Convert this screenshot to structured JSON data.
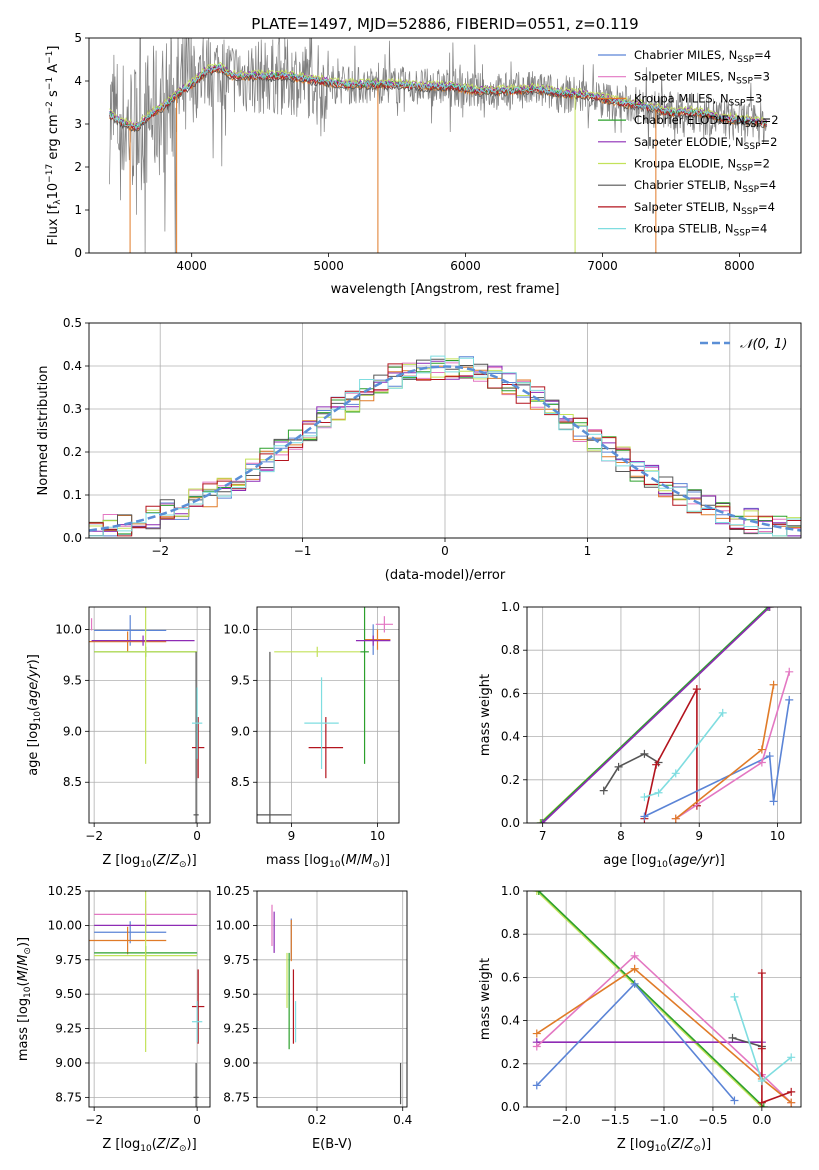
{
  "figure": {
    "title": "PLATE=1497, MJD=52886, FIBERID=0551, z=0.119"
  },
  "colors": {
    "chabrier_miles": "#5b84d6",
    "salpeter_miles": "#e377c2",
    "kroupa_miles": "#e07b28",
    "chabrier_elodie": "#2ca02c",
    "salpeter_elodie": "#8e2bb5",
    "kroupa_elodie": "#c3e25a",
    "chabrier_stelib": "#555555",
    "salpeter_stelib": "#b3141e",
    "kroupa_stelib": "#7fdde0",
    "normal_curve": "#5b8fd6"
  },
  "chart_data": [
    {
      "id": "spectrum",
      "type": "line",
      "xlabel": "wavelength [Angstrom, rest frame]",
      "ylabel_prefix": "Flux [f",
      "ylim": [
        0,
        5
      ],
      "xlim": [
        3250,
        8450
      ],
      "xticks": [
        4000,
        5000,
        6000,
        7000,
        8000
      ],
      "yticks": [
        0,
        1,
        2,
        3,
        4,
        5
      ],
      "grid": false,
      "legend_position": "upper-right",
      "legend": [
        {
          "key": "chabrier_miles",
          "name": "Chabrier MILES",
          "nssp": "4"
        },
        {
          "key": "salpeter_miles",
          "name": "Salpeter MILES",
          "nssp": "3"
        },
        {
          "key": "kroupa_miles",
          "name": "Kroupa MILES",
          "nssp": "3"
        },
        {
          "key": "chabrier_elodie",
          "name": "Chabrier ELODIE",
          "nssp": "2"
        },
        {
          "key": "salpeter_elodie",
          "name": "Salpeter ELODIE",
          "nssp": "2"
        },
        {
          "key": "kroupa_elodie",
          "name": "Kroupa ELODIE",
          "nssp": "2"
        },
        {
          "key": "chabrier_stelib",
          "name": "Chabrier STELIB",
          "nssp": "4"
        },
        {
          "key": "salpeter_stelib",
          "name": "Salpeter STELIB",
          "nssp": "4"
        },
        {
          "key": "kroupa_stelib",
          "name": "Kroupa STELIB",
          "nssp": "4"
        }
      ],
      "continuum": [
        [
          3400,
          3.2
        ],
        [
          3500,
          3.0
        ],
        [
          3600,
          2.9
        ],
        [
          3700,
          3.2
        ],
        [
          3800,
          3.4
        ],
        [
          3900,
          3.7
        ],
        [
          4000,
          3.9
        ],
        [
          4100,
          4.2
        ],
        [
          4200,
          4.3
        ],
        [
          4300,
          4.1
        ],
        [
          4500,
          4.1
        ],
        [
          4700,
          4.1
        ],
        [
          4900,
          4.0
        ],
        [
          5100,
          3.9
        ],
        [
          5300,
          3.9
        ],
        [
          5500,
          3.9
        ],
        [
          5700,
          3.85
        ],
        [
          5900,
          3.85
        ],
        [
          6100,
          3.75
        ],
        [
          6300,
          3.75
        ],
        [
          6500,
          3.8
        ],
        [
          6700,
          3.7
        ],
        [
          6900,
          3.65
        ],
        [
          7100,
          3.5
        ],
        [
          7300,
          3.4
        ],
        [
          7500,
          3.25
        ],
        [
          7700,
          3.25
        ],
        [
          7900,
          3.1
        ],
        [
          8100,
          3.05
        ],
        [
          8200,
          3.0
        ]
      ],
      "model_offsets": {
        "chabrier_miles": 0.02,
        "salpeter_miles": 0.05,
        "kroupa_miles": -0.03,
        "chabrier_elodie": 0.04,
        "salpeter_elodie": 0.07,
        "kroupa_elodie": 0.1,
        "chabrier_stelib": -0.05,
        "salpeter_stelib": 0.0,
        "kroupa_stelib": 0.03
      },
      "model_dropouts": [
        {
          "key": "kroupa_miles",
          "x": 3550
        },
        {
          "key": "kroupa_miles",
          "x": 3890
        },
        {
          "key": "kroupa_miles",
          "x": 5360
        },
        {
          "key": "kroupa_elodie",
          "x": 6800
        },
        {
          "key": "kroupa_miles",
          "x": 7390
        }
      ]
    },
    {
      "id": "residuals",
      "type": "line",
      "xlabel": "(data-model)/error",
      "ylabel": "Normed distribution",
      "xlim": [
        -2.5,
        2.5
      ],
      "ylim": [
        0,
        0.5
      ],
      "xticks": [
        -2,
        -1,
        0,
        1,
        2
      ],
      "yticks": [
        0.0,
        0.1,
        0.2,
        0.3,
        0.4,
        0.5
      ],
      "grid": true,
      "legend_position": "upper-right",
      "legend": [
        {
          "key": "normal_curve",
          "name": "𝒩(0, 1)"
        }
      ],
      "bin_width": 0.1
    },
    {
      "id": "age_vs_z",
      "type": "scatter",
      "xlabel_prefix": "Z [log",
      "ylabel_prefix": "age  [log",
      "xlim": [
        -2.1,
        0.25
      ],
      "ylim": [
        8.1,
        10.22
      ],
      "xticks": [
        -2,
        0
      ],
      "yticks": [
        8.5,
        9.0,
        9.5,
        10.0
      ],
      "grid": true,
      "points": [
        {
          "key": "chabrier_miles",
          "x": -1.3,
          "y": 9.99,
          "xerr": 0.7,
          "yerr": 0.15
        },
        {
          "key": "salpeter_miles",
          "x": -2.05,
          "y": 10.05,
          "xerr": 0.0,
          "yerr": 0.06
        },
        {
          "key": "kroupa_miles",
          "x": -1.35,
          "y": 9.88,
          "xerr": 0.75,
          "yerr": 0.1
        },
        {
          "key": "chabrier_elodie",
          "x": -1.0,
          "y": 9.78,
          "xerr": 1.0,
          "yerr": 0.05
        },
        {
          "key": "salpeter_elodie",
          "x": -1.05,
          "y": 9.89,
          "xerr": 1.0,
          "yerr": 0.05
        },
        {
          "key": "kroupa_elodie",
          "x": -1.0,
          "y": 9.78,
          "xerr": 1.0,
          "yerr": 1.1
        },
        {
          "key": "chabrier_stelib",
          "x": -0.02,
          "y": 8.18,
          "xerr": 0.05,
          "yerr": 1.6
        },
        {
          "key": "salpeter_stelib",
          "x": 0.02,
          "y": 8.84,
          "xerr": 0.12,
          "yerr": 0.3
        },
        {
          "key": "kroupa_stelib",
          "x": 0.0,
          "y": 9.08,
          "xerr": 0.1,
          "yerr": 0.35
        }
      ]
    },
    {
      "id": "age_vs_mass",
      "type": "scatter",
      "xlabel_prefix": "mass [log",
      "xlim": [
        8.6,
        10.25
      ],
      "ylim": [
        8.1,
        10.22
      ],
      "xticks": [
        9,
        10
      ],
      "yticks": [
        8.5,
        9.0,
        9.5,
        10.0
      ],
      "grid": true,
      "points": [
        {
          "key": "chabrier_miles",
          "x": 9.95,
          "y": 9.9,
          "xerr": 0.1,
          "yerr": 0.15
        },
        {
          "key": "salpeter_miles",
          "x": 10.08,
          "y": 10.05,
          "xerr": 0.1,
          "yerr": 0.08
        },
        {
          "key": "kroupa_miles",
          "x": 10.0,
          "y": 9.9,
          "xerr": 0.15,
          "yerr": 0.1
        },
        {
          "key": "chabrier_elodie",
          "x": 9.85,
          "y": 9.78,
          "xerr": 0.05,
          "yerr": 1.1
        },
        {
          "key": "salpeter_elodie",
          "x": 9.95,
          "y": 9.89,
          "xerr": 0.2,
          "yerr": 0.05
        },
        {
          "key": "kroupa_elodie",
          "x": 9.3,
          "y": 9.78,
          "xerr": 0.5,
          "yerr": 0.05
        },
        {
          "key": "chabrier_stelib",
          "x": 8.75,
          "y": 8.18,
          "xerr": 0.25,
          "yerr": 1.6
        },
        {
          "key": "salpeter_stelib",
          "x": 9.4,
          "y": 8.84,
          "xerr": 0.2,
          "yerr": 0.3
        },
        {
          "key": "kroupa_stelib",
          "x": 9.35,
          "y": 9.08,
          "xerr": 0.2,
          "yerr": 0.45
        }
      ]
    },
    {
      "id": "weight_vs_age",
      "type": "line",
      "xlabel_prefix": "age  [log",
      "ylabel": "mass weight",
      "xlim": [
        6.8,
        10.3
      ],
      "ylim": [
        0,
        1
      ],
      "xticks": [
        7,
        8,
        9,
        10
      ],
      "yticks": [
        0.0,
        0.2,
        0.4,
        0.6,
        0.8,
        1.0
      ],
      "grid": true,
      "series": [
        {
          "key": "kroupa_elodie",
          "x": [
            6.97,
            9.9
          ],
          "y": [
            0.0,
            1.0
          ]
        },
        {
          "key": "chabrier_elodie",
          "x": [
            6.98,
            9.88
          ],
          "y": [
            0.0,
            1.0
          ]
        },
        {
          "key": "salpeter_elodie",
          "x": [
            7.0,
            9.9
          ],
          "y": [
            0.0,
            1.0
          ]
        },
        {
          "key": "chabrier_stelib",
          "x": [
            7.78,
            7.97,
            8.3,
            8.48
          ],
          "y": [
            0.15,
            0.26,
            0.32,
            0.28
          ]
        },
        {
          "key": "salpeter_stelib",
          "x": [
            8.3,
            8.45,
            8.97,
            8.97,
            8.97
          ],
          "y": [
            0.02,
            0.27,
            0.62,
            0.08,
            0.62
          ]
        },
        {
          "key": "kroupa_stelib",
          "x": [
            8.3,
            8.48,
            8.7,
            9.3
          ],
          "y": [
            0.12,
            0.14,
            0.23,
            0.51
          ]
        },
        {
          "key": "chabrier_miles",
          "x": [
            8.3,
            9.9,
            9.95,
            10.15
          ],
          "y": [
            0.03,
            0.31,
            0.1,
            0.57
          ]
        },
        {
          "key": "salpeter_miles",
          "x": [
            8.7,
            9.8,
            10.15
          ],
          "y": [
            0.02,
            0.28,
            0.7
          ]
        },
        {
          "key": "kroupa_miles",
          "x": [
            8.7,
            9.8,
            9.95
          ],
          "y": [
            0.02,
            0.34,
            0.64
          ]
        }
      ]
    },
    {
      "id": "mass_vs_z",
      "type": "scatter",
      "xlabel_prefix": "Z [log",
      "ylabel_prefix": "mass [log",
      "xlim": [
        -2.1,
        0.25
      ],
      "ylim": [
        8.68,
        10.25
      ],
      "xticks": [
        -2,
        0
      ],
      "yticks": [
        8.75,
        9.0,
        9.25,
        9.5,
        9.75,
        10.0,
        10.25
      ],
      "grid": true,
      "points": [
        {
          "key": "chabrier_miles",
          "x": -1.3,
          "y": 9.95,
          "xerr": 0.7,
          "yerr": 0.08
        },
        {
          "key": "salpeter_miles",
          "x": -1.0,
          "y": 10.08,
          "xerr": 1.0,
          "yerr": 0.1
        },
        {
          "key": "kroupa_miles",
          "x": -1.35,
          "y": 9.89,
          "xerr": 0.75,
          "yerr": 0.1
        },
        {
          "key": "chabrier_elodie",
          "x": -1.0,
          "y": 9.8,
          "xerr": 1.0,
          "yerr": 0.05
        },
        {
          "key": "salpeter_elodie",
          "x": -1.0,
          "y": 10.0,
          "xerr": 1.0,
          "yerr": 0.05
        },
        {
          "key": "kroupa_elodie",
          "x": -1.0,
          "y": 9.78,
          "xerr": 1.0,
          "yerr": 0.7
        },
        {
          "key": "chabrier_stelib",
          "x": -0.02,
          "y": 8.75,
          "xerr": 0.05,
          "yerr": 0.25
        },
        {
          "key": "salpeter_stelib",
          "x": 0.02,
          "y": 9.41,
          "xerr": 0.12,
          "yerr": 0.27
        },
        {
          "key": "kroupa_stelib",
          "x": 0.0,
          "y": 9.3,
          "xerr": 0.1,
          "yerr": 0.15
        }
      ]
    },
    {
      "id": "mass_vs_ebv",
      "type": "scatter",
      "xlabel": "E(B-V)",
      "xlim": [
        0.06,
        0.41
      ],
      "ylim": [
        8.68,
        10.25
      ],
      "xticks": [
        0.2,
        0.4
      ],
      "yticks": [
        8.75,
        9.0,
        9.25,
        9.5,
        9.75,
        10.0,
        10.25
      ],
      "grid": true,
      "points": [
        {
          "key": "chabrier_miles",
          "x": 0.14,
          "y": 9.9,
          "xerr": 0.0,
          "yerr": 0.15
        },
        {
          "key": "salpeter_miles",
          "x": 0.095,
          "y": 10.0,
          "xerr": 0.0,
          "yerr": 0.15
        },
        {
          "key": "kroupa_miles",
          "x": 0.14,
          "y": 9.89,
          "xerr": 0.0,
          "yerr": 0.15
        },
        {
          "key": "chabrier_elodie",
          "x": 0.135,
          "y": 9.45,
          "xerr": 0.0,
          "yerr": 0.35
        },
        {
          "key": "salpeter_elodie",
          "x": 0.1,
          "y": 9.95,
          "xerr": 0.0,
          "yerr": 0.15
        },
        {
          "key": "kroupa_elodie",
          "x": 0.13,
          "y": 9.6,
          "xerr": 0.0,
          "yerr": 0.2
        },
        {
          "key": "chabrier_stelib",
          "x": 0.395,
          "y": 8.85,
          "xerr": 0.0,
          "yerr": 0.15
        },
        {
          "key": "salpeter_stelib",
          "x": 0.145,
          "y": 9.41,
          "xerr": 0.0,
          "yerr": 0.27
        },
        {
          "key": "kroupa_stelib",
          "x": 0.15,
          "y": 9.3,
          "xerr": 0.0,
          "yerr": 0.15
        }
      ]
    },
    {
      "id": "weight_vs_z",
      "type": "line",
      "xlabel_prefix": "Z [log",
      "ylabel": "mass weight",
      "xlim": [
        -2.4,
        0.4
      ],
      "ylim": [
        0,
        1
      ],
      "xticks": [
        -2.0,
        -1.5,
        -1.0,
        -0.5,
        0.0
      ],
      "yticks": [
        0.0,
        0.2,
        0.4,
        0.6,
        0.8,
        1.0
      ],
      "grid": true,
      "series": [
        {
          "key": "kroupa_elodie",
          "x": [
            -2.3,
            0.0
          ],
          "y": [
            1.0,
            0.0
          ]
        },
        {
          "key": "chabrier_elodie",
          "x": [
            -2.28,
            0.02
          ],
          "y": [
            1.0,
            0.0
          ]
        },
        {
          "key": "salpeter_elodie",
          "x": [
            -2.3,
            0.0
          ],
          "y": [
            0.3,
            0.3
          ]
        },
        {
          "key": "chabrier_miles",
          "x": [
            -2.3,
            -1.3,
            -0.28
          ],
          "y": [
            0.1,
            0.57,
            0.03
          ]
        },
        {
          "key": "salpeter_miles",
          "x": [
            -2.3,
            -1.3,
            0.0,
            0.3
          ],
          "y": [
            0.28,
            0.7,
            0.15,
            0.02
          ]
        },
        {
          "key": "kroupa_miles",
          "x": [
            -2.3,
            -1.3,
            0.0,
            0.3
          ],
          "y": [
            0.34,
            0.64,
            0.13,
            0.02
          ]
        },
        {
          "key": "chabrier_stelib",
          "x": [
            -0.3,
            0.0
          ],
          "y": [
            0.32,
            0.28
          ]
        },
        {
          "key": "salpeter_stelib",
          "x": [
            0.0,
            0.0,
            0.0,
            0.3
          ],
          "y": [
            0.62,
            0.27,
            0.02,
            0.07
          ]
        },
        {
          "key": "kroupa_stelib",
          "x": [
            -0.28,
            0.0,
            0.3
          ],
          "y": [
            0.51,
            0.12,
            0.23
          ]
        }
      ]
    }
  ]
}
